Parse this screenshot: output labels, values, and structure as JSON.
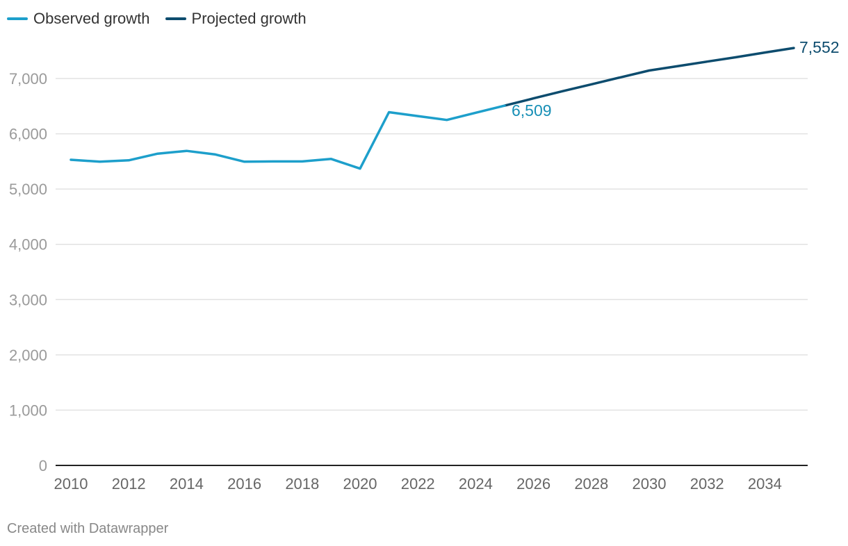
{
  "chart_data": {
    "type": "line",
    "title": "",
    "xlabel": "",
    "ylabel": "",
    "ylim": [
      0,
      7000
    ],
    "xlim": [
      2010,
      2035
    ],
    "yticks": [
      0,
      1000,
      2000,
      3000,
      4000,
      5000,
      6000,
      7000
    ],
    "ytick_labels": [
      "0",
      "1,000",
      "2,000",
      "3,000",
      "4,000",
      "5,000",
      "6,000",
      "7,000"
    ],
    "xticks": [
      2010,
      2012,
      2014,
      2016,
      2018,
      2020,
      2022,
      2024,
      2026,
      2028,
      2030,
      2032,
      2034
    ],
    "xtick_labels": [
      "2010",
      "2012",
      "2014",
      "2016",
      "2018",
      "2020",
      "2022",
      "2024",
      "2026",
      "2028",
      "2030",
      "2032",
      "2034"
    ],
    "grid": true,
    "legend_position": "top-left",
    "series": [
      {
        "name": "Observed growth",
        "color": "#1d9fcb",
        "label_color": "#178fb6",
        "x": [
          2010,
          2011,
          2012,
          2013,
          2014,
          2015,
          2016,
          2017,
          2018,
          2019,
          2020,
          2021,
          2022,
          2023,
          2024,
          2025
        ],
        "values": [
          5530,
          5495,
          5520,
          5640,
          5690,
          5625,
          5495,
          5500,
          5500,
          5545,
          5370,
          6390,
          6320,
          6250,
          6380,
          6509
        ],
        "end_label": "6,509"
      },
      {
        "name": "Projected growth",
        "color": "#0d4c6e",
        "label_color": "#0d4c6e",
        "x": [
          2025,
          2026,
          2027,
          2028,
          2029,
          2030,
          2031,
          2032,
          2033,
          2034,
          2035
        ],
        "values": [
          6509,
          6640,
          6770,
          6895,
          7020,
          7145,
          7225,
          7305,
          7385,
          7470,
          7552
        ],
        "end_label": "7,552"
      }
    ]
  },
  "footer": "Created with Datawrapper"
}
